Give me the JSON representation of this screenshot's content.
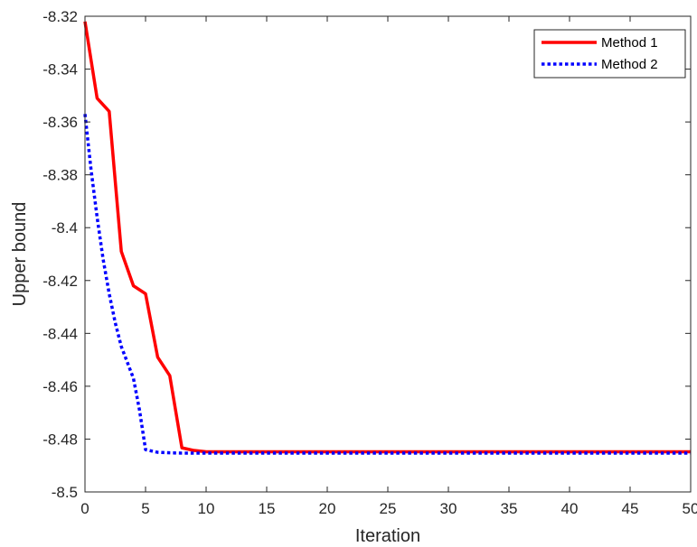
{
  "chart_data": {
    "type": "line",
    "title": "",
    "xlabel": "Iteration",
    "ylabel": "Upper bound",
    "xlim": [
      0,
      50
    ],
    "ylim": [
      -8.5,
      -8.32
    ],
    "x_ticks": [
      0,
      5,
      10,
      15,
      20,
      25,
      30,
      35,
      40,
      45,
      50
    ],
    "x_tick_labels": [
      "0",
      "5",
      "10",
      "15",
      "20",
      "25",
      "30",
      "35",
      "40",
      "45",
      "50"
    ],
    "y_ticks": [
      -8.5,
      -8.48,
      -8.46,
      -8.44,
      -8.42,
      -8.4,
      -8.38,
      -8.36,
      -8.34,
      -8.32
    ],
    "y_tick_labels": [
      "-8.5",
      "-8.48",
      "-8.46",
      "-8.44",
      "-8.42",
      "-8.4",
      "-8.38",
      "-8.36",
      "-8.34",
      "-8.32"
    ],
    "grid": false,
    "legend_position": "top-right",
    "series": [
      {
        "name": "Method 1",
        "color": "#ff0000",
        "line_style": "solid",
        "x": [
          0,
          1,
          2,
          3,
          4,
          5,
          6,
          7,
          8,
          9,
          10,
          50
        ],
        "y": [
          -8.322,
          -8.351,
          -8.356,
          -8.409,
          -8.422,
          -8.425,
          -8.449,
          -8.456,
          -8.4833,
          -8.4843,
          -8.4848,
          -8.4848
        ]
      },
      {
        "name": "Method 2",
        "color": "#0000ff",
        "line_style": "dotted",
        "x": [
          0,
          0.5,
          1,
          1.5,
          2,
          2.5,
          3,
          3.5,
          4,
          4.5,
          5,
          6,
          7,
          8,
          9,
          10,
          50
        ],
        "y": [
          -8.357,
          -8.378,
          -8.396,
          -8.412,
          -8.425,
          -8.436,
          -8.445,
          -8.451,
          -8.457,
          -8.469,
          -8.484,
          -8.485,
          -8.4852,
          -8.4853,
          -8.4853,
          -8.4853,
          -8.4853
        ]
      }
    ]
  }
}
